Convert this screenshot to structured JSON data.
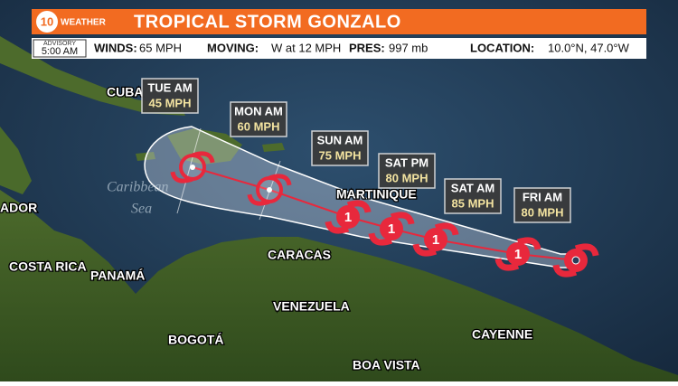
{
  "header": {
    "logo_number": "10",
    "logo_text": "WEATHER",
    "title": "TROPICAL STORM GONZALO"
  },
  "info_bar": {
    "advisory_label": "ADVISORY",
    "advisory_time": "5:00 AM",
    "winds_label": "WINDS:",
    "winds_value": "65 MPH",
    "moving_label": "MOVING:",
    "moving_value": "W at 12 MPH",
    "pres_label": "PRES:",
    "pres_value": "997 mb",
    "location_label": "LOCATION:",
    "location_value": "10.0°N, 47.0°W"
  },
  "forecast_points": [
    {
      "label": "FRI AM",
      "wind": "80 MPH",
      "category": "1"
    },
    {
      "label": "SAT AM",
      "wind": "85 MPH",
      "category": "1"
    },
    {
      "label": "SAT PM",
      "wind": "80 MPH",
      "category": "1"
    },
    {
      "label": "SUN AM",
      "wind": "75 MPH",
      "category": "1"
    },
    {
      "label": "MON AM",
      "wind": "60 MPH"
    },
    {
      "label": "TUE AM",
      "wind": "45 MPH"
    }
  ],
  "places": [
    "CUBA",
    "ADOR",
    "COSTA RICA",
    "PANAMÁ",
    "CARACAS",
    "MARTINIQUE",
    "VENEZUELA",
    "BOGOTÁ",
    "BOA VISTA",
    "CAYENNE"
  ],
  "sea_labels": [
    "Caribbean",
    "Sea"
  ]
}
